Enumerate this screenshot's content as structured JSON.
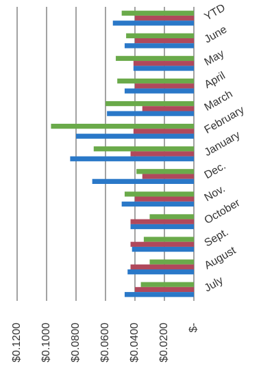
{
  "chart_data": {
    "type": "bar",
    "orientation": "horizontal",
    "categories": [
      "YTD",
      "June",
      "May",
      "April",
      "March",
      "February",
      "January",
      "Dec.",
      "Nov.",
      "October",
      "Sept.",
      "August",
      "July"
    ],
    "series": [
      {
        "color": "#6aaa4a",
        "values": [
          0.049,
          0.046,
          0.053,
          0.052,
          0.06,
          0.097,
          0.068,
          0.039,
          0.047,
          0.03,
          0.034,
          0.03,
          0.036
        ]
      },
      {
        "color": "#b0485c",
        "values": [
          0.04,
          0.04,
          0.041,
          0.04,
          0.035,
          0.041,
          0.043,
          0.035,
          0.04,
          0.043,
          0.043,
          0.043,
          0.04
        ]
      },
      {
        "color": "#2a78c8",
        "values": [
          0.055,
          0.047,
          0.041,
          0.047,
          0.059,
          0.08,
          0.084,
          0.069,
          0.049,
          0.043,
          0.042,
          0.045,
          0.047
        ]
      }
    ],
    "ylim": [
      0,
      0.12
    ],
    "yticks": [
      {
        "value": 0,
        "label": "$-"
      },
      {
        "value": 0.02,
        "label": "$0.0200"
      },
      {
        "value": 0.04,
        "label": "$0.0400"
      },
      {
        "value": 0.06,
        "label": "$0.0600"
      },
      {
        "value": 0.08,
        "label": "$0.0800"
      },
      {
        "value": 0.1,
        "label": "$0.1000"
      },
      {
        "value": 0.12,
        "label": "$0.1200"
      }
    ],
    "grid": true
  }
}
